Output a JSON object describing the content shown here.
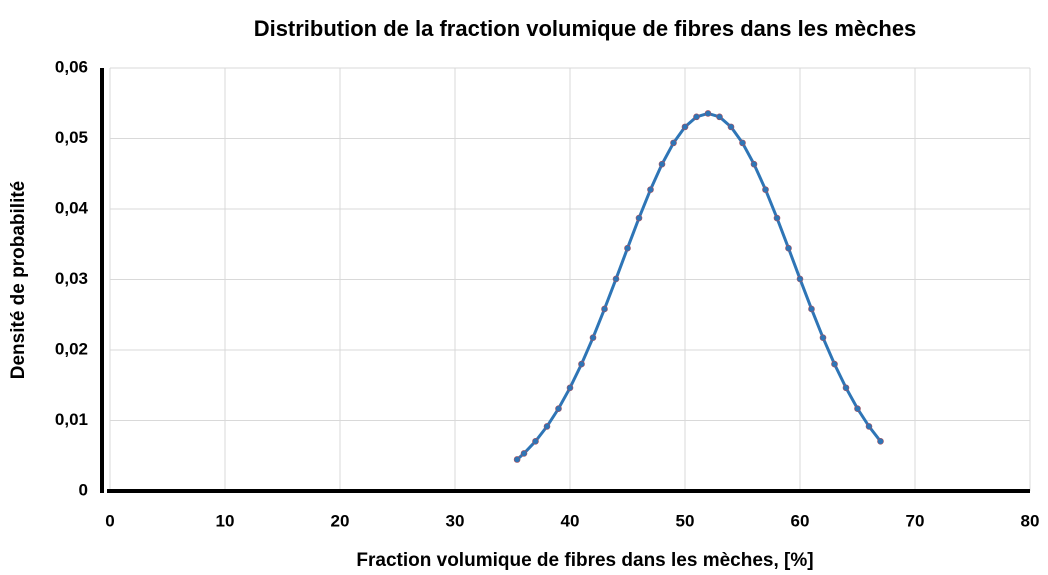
{
  "chart_data": {
    "type": "scatter",
    "title": "Distribution de la fraction volumique de fibres dans les mèches",
    "x_label": "Fraction volumique de fibres dans les mèches, [%]",
    "y_label": "Densité de probabilité",
    "x": [
      35.4,
      36,
      37,
      38,
      39,
      40,
      41,
      42,
      43,
      44,
      45,
      46,
      47,
      48,
      49,
      50,
      51,
      52,
      53,
      54,
      55,
      56,
      57,
      58,
      59,
      60,
      61,
      62,
      63,
      64,
      65,
      66,
      67
    ],
    "series": [
      {
        "color": "#2e75b6",
        "values": [
          0.00447,
          0.00533,
          0.00705,
          0.00916,
          0.01168,
          0.01464,
          0.018,
          0.02175,
          0.02582,
          0.03008,
          0.03444,
          0.03872,
          0.04275,
          0.04636,
          0.04938,
          0.05165,
          0.05307,
          0.05355,
          0.05307,
          0.05165,
          0.04938,
          0.04636,
          0.04275,
          0.03872,
          0.03444,
          0.03008,
          0.02582,
          0.02175,
          0.018,
          0.01464,
          0.01168,
          0.00916,
          0.00705
        ]
      }
    ],
    "xlim": [
      0,
      80
    ],
    "xticks": [
      0,
      10,
      20,
      30,
      40,
      50,
      60,
      70,
      80
    ],
    "ylim": [
      0,
      0.06
    ],
    "yticks": [
      0,
      {
        "value": 0.01,
        "label": "0,01"
      },
      {
        "value": 0.02,
        "label": "0,02"
      },
      {
        "value": 0.03,
        "label": "0,03"
      },
      {
        "value": 0.04,
        "label": "0,04"
      },
      {
        "value": 0.05,
        "label": "0,05"
      },
      {
        "value": 0.06,
        "label": "0,06"
      }
    ],
    "grid": true
  }
}
